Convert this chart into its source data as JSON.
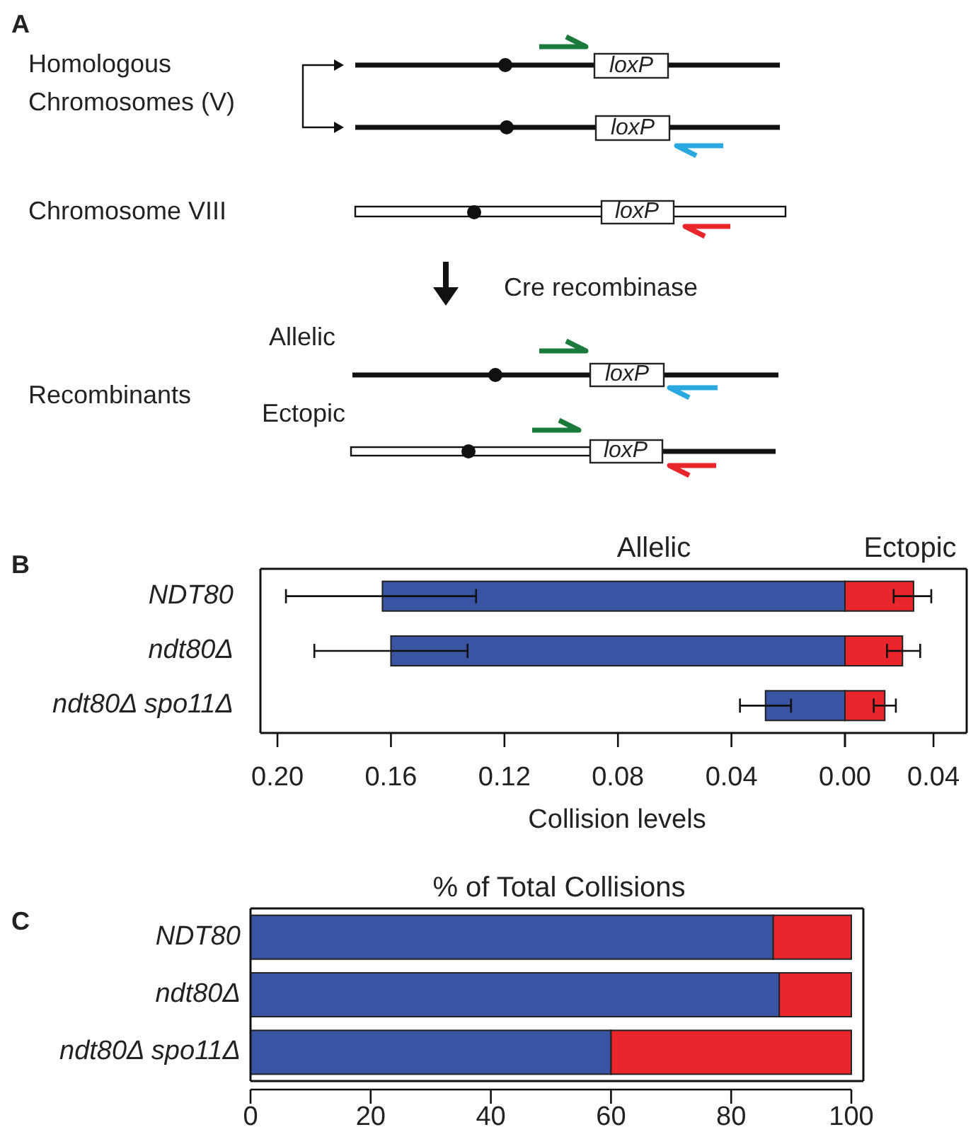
{
  "chart_data": [
    {
      "type": "other",
      "annotations": [
        "A",
        "Homologous",
        "Chromosomes (V)",
        "Chromosome VIII",
        "Cre recombinase",
        "Allelic",
        "Recombinants",
        "Ectopic",
        "loxP",
        "loxP",
        "loxP",
        "loxP",
        "loxP"
      ]
    },
    {
      "type": "bar",
      "orientation": "horizontal",
      "title": "Allelic",
      "xlabel": "Collision levels",
      "annotations": [
        "B"
      ],
      "categories": [
        "NDT80",
        "ndt80Δ",
        "ndt80Δ spo11Δ"
      ],
      "values": [
        0.163,
        0.16,
        0.028
      ],
      "color": "#3a54a4",
      "errors": [
        [
          0.13,
          0.197
        ],
        [
          0.133,
          0.187
        ],
        [
          0.019,
          0.037
        ]
      ],
      "xlim": [
        0.206,
        0
      ],
      "xticks": [
        {
          "value": 0.2,
          "label": "0.20"
        },
        {
          "value": 0.16,
          "label": "0.16"
        },
        {
          "value": 0.12,
          "label": "0.12"
        },
        {
          "value": 0.08,
          "label": "0.08"
        },
        {
          "value": 0.04,
          "label": "0.04"
        },
        {
          "value": 0,
          "label": null
        }
      ]
    },
    {
      "type": "bar",
      "orientation": "horizontal",
      "title": "Ectopic",
      "tick_labels": "x",
      "categories": [
        null,
        null,
        null
      ],
      "values": [
        0.031,
        0.026,
        0.018
      ],
      "color": "#e8262b",
      "errors": [
        [
          0.022,
          0.039
        ],
        [
          0.019,
          0.034
        ],
        [
          0.013,
          0.023
        ]
      ],
      "xlim": [
        0,
        0.055
      ],
      "xticks": [
        {
          "value": 0,
          "label": "0.00"
        },
        {
          "value": 0.04,
          "label": "0.04"
        }
      ]
    },
    {
      "type": "bar",
      "orientation": "horizontal",
      "stacked": true,
      "title": "% of Total Collisions",
      "annotations": [
        "C"
      ],
      "categories": [
        "NDT80",
        "ndt80Δ",
        "ndt80Δ spo11Δ"
      ],
      "series": [
        {
          "color": "#3a54a4",
          "values": [
            87,
            88,
            60
          ]
        },
        {
          "color": "#e8262b",
          "values": [
            13,
            12,
            40
          ]
        }
      ],
      "xlim": [
        0,
        102
      ],
      "xticks": [
        0,
        20,
        40,
        60,
        80,
        100
      ]
    }
  ]
}
